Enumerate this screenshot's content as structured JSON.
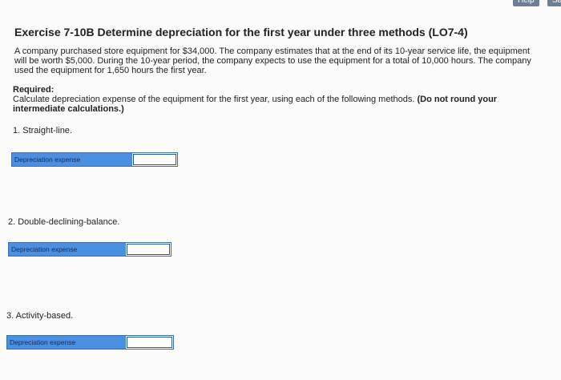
{
  "header": {
    "help": "Help",
    "save": "Sav"
  },
  "title": "Exercise 7-10B Determine depreciation for the first year under three methods (LO7-4)",
  "problem": "A company purchased store equipment for $34,000. The company estimates that at the end of its 10-year service life, the equipment will be worth $5,000. During the 10-year period, the company expects to use the equipment for a total of 10,000 hours. The company used the equipment for 1,650 hours the first year.",
  "required": {
    "heading": "Required:",
    "text": "Calculate depreciation expense of the equipment for the first year, using each of the following methods.",
    "note": "(Do not round your intermediate calculations.)"
  },
  "parts": [
    {
      "label": "1. Straight-line.",
      "field": "Depreciation expense"
    },
    {
      "label": "2. Double-declining-balance.",
      "field": "Depreciation expense"
    },
    {
      "label": "3. Activity-based.",
      "field": "Depreciation expense"
    }
  ]
}
